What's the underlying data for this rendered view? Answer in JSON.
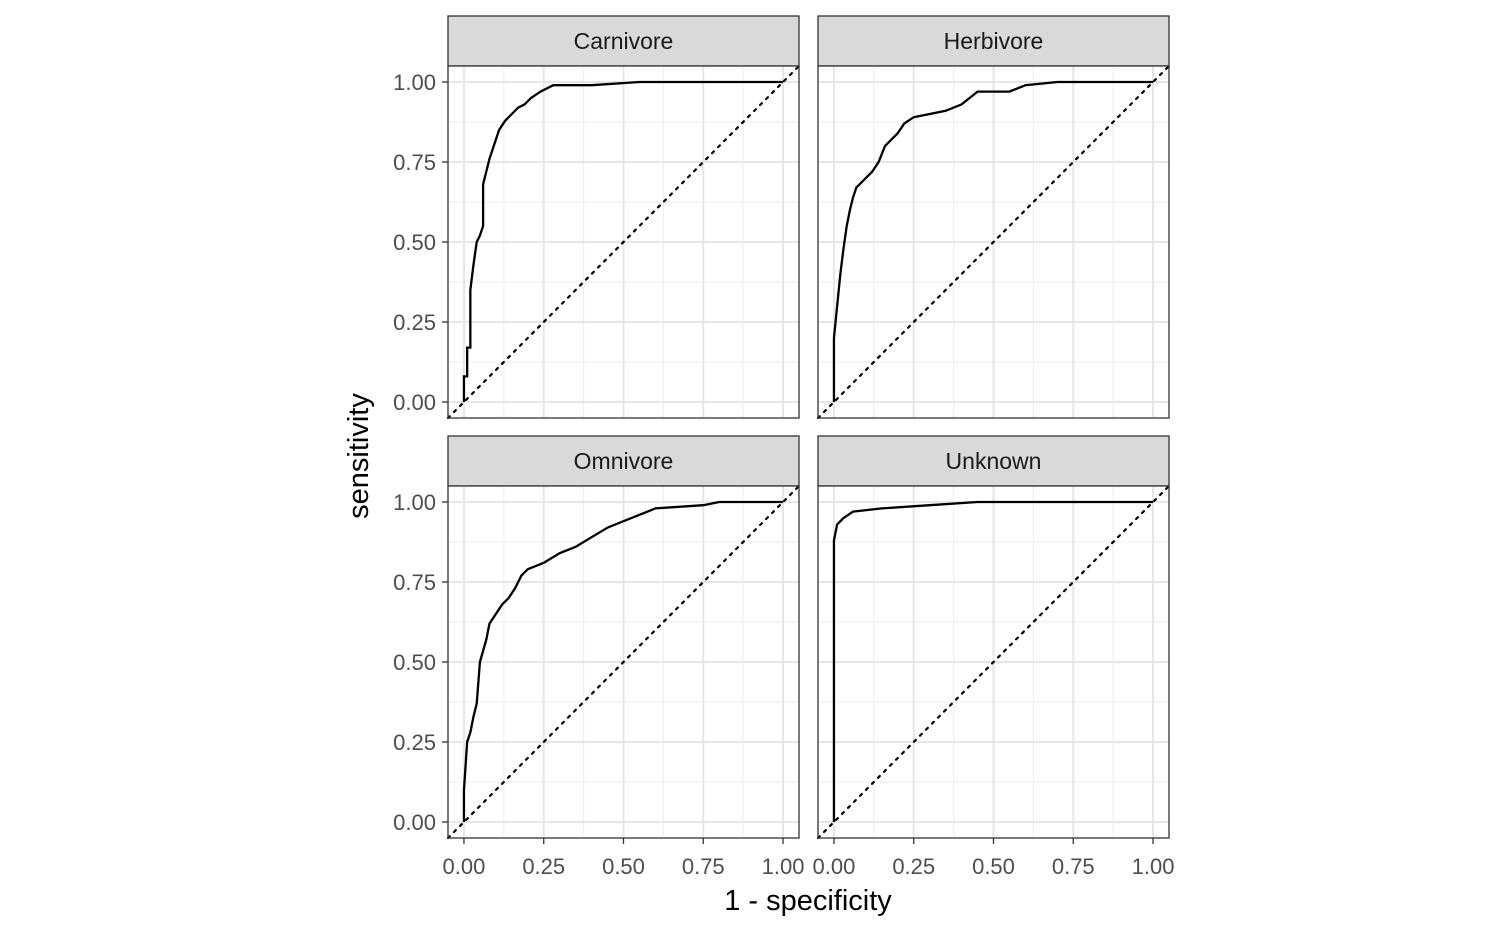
{
  "chart_data": {
    "type": "line",
    "xlabel": "1 - specificity",
    "ylabel": "sensitivity",
    "xlim": [
      0,
      1
    ],
    "ylim": [
      0,
      1
    ],
    "x_ticks": [
      "0.00",
      "0.25",
      "0.50",
      "0.75",
      "1.00"
    ],
    "y_ticks": [
      "0.00",
      "0.25",
      "0.50",
      "0.75",
      "1.00"
    ],
    "grid": true,
    "reference_line": "diagonal dotted",
    "panels": [
      {
        "name": "Carnivore",
        "points": [
          [
            0,
            0
          ],
          [
            0,
            0.08
          ],
          [
            0.01,
            0.08
          ],
          [
            0.01,
            0.17
          ],
          [
            0.02,
            0.17
          ],
          [
            0.02,
            0.35
          ],
          [
            0.03,
            0.43
          ],
          [
            0.04,
            0.5
          ],
          [
            0.05,
            0.52
          ],
          [
            0.06,
            0.55
          ],
          [
            0.06,
            0.68
          ],
          [
            0.07,
            0.72
          ],
          [
            0.08,
            0.76
          ],
          [
            0.09,
            0.79
          ],
          [
            0.1,
            0.82
          ],
          [
            0.11,
            0.85
          ],
          [
            0.13,
            0.88
          ],
          [
            0.15,
            0.9
          ],
          [
            0.17,
            0.92
          ],
          [
            0.19,
            0.93
          ],
          [
            0.21,
            0.95
          ],
          [
            0.24,
            0.97
          ],
          [
            0.28,
            0.99
          ],
          [
            0.4,
            0.99
          ],
          [
            0.55,
            1
          ],
          [
            1,
            1
          ]
        ]
      },
      {
        "name": "Herbivore",
        "points": [
          [
            0,
            0
          ],
          [
            0,
            0.2
          ],
          [
            0.01,
            0.3
          ],
          [
            0.02,
            0.4
          ],
          [
            0.03,
            0.48
          ],
          [
            0.04,
            0.55
          ],
          [
            0.05,
            0.6
          ],
          [
            0.06,
            0.64
          ],
          [
            0.07,
            0.67
          ],
          [
            0.09,
            0.69
          ],
          [
            0.1,
            0.7
          ],
          [
            0.12,
            0.72
          ],
          [
            0.14,
            0.75
          ],
          [
            0.16,
            0.8
          ],
          [
            0.18,
            0.82
          ],
          [
            0.2,
            0.84
          ],
          [
            0.22,
            0.87
          ],
          [
            0.25,
            0.89
          ],
          [
            0.3,
            0.9
          ],
          [
            0.35,
            0.91
          ],
          [
            0.4,
            0.93
          ],
          [
            0.45,
            0.97
          ],
          [
            0.55,
            0.97
          ],
          [
            0.6,
            0.99
          ],
          [
            0.7,
            1
          ],
          [
            1,
            1
          ]
        ]
      },
      {
        "name": "Omnivore",
        "points": [
          [
            0,
            0
          ],
          [
            0,
            0.1
          ],
          [
            0.01,
            0.25
          ],
          [
            0.02,
            0.28
          ],
          [
            0.03,
            0.33
          ],
          [
            0.04,
            0.37
          ],
          [
            0.05,
            0.5
          ],
          [
            0.07,
            0.57
          ],
          [
            0.08,
            0.62
          ],
          [
            0.1,
            0.65
          ],
          [
            0.12,
            0.68
          ],
          [
            0.14,
            0.7
          ],
          [
            0.16,
            0.73
          ],
          [
            0.18,
            0.77
          ],
          [
            0.2,
            0.79
          ],
          [
            0.25,
            0.81
          ],
          [
            0.3,
            0.84
          ],
          [
            0.35,
            0.86
          ],
          [
            0.4,
            0.89
          ],
          [
            0.45,
            0.92
          ],
          [
            0.5,
            0.94
          ],
          [
            0.55,
            0.96
          ],
          [
            0.6,
            0.98
          ],
          [
            0.75,
            0.99
          ],
          [
            0.8,
            1
          ],
          [
            1,
            1
          ]
        ]
      },
      {
        "name": "Unknown",
        "points": [
          [
            0,
            0
          ],
          [
            0,
            0.88
          ],
          [
            0.01,
            0.93
          ],
          [
            0.03,
            0.95
          ],
          [
            0.06,
            0.97
          ],
          [
            0.15,
            0.98
          ],
          [
            0.3,
            0.99
          ],
          [
            0.45,
            1
          ],
          [
            1,
            1
          ]
        ]
      }
    ]
  }
}
